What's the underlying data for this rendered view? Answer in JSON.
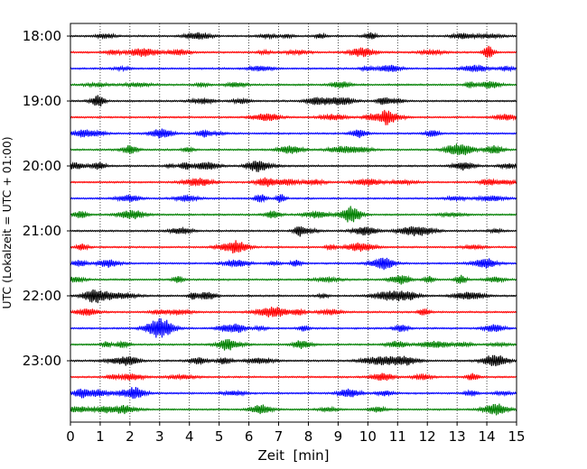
{
  "chart_data": {
    "type": "line",
    "title": "",
    "xlabel": "Zeit  [min]",
    "ylabel": "UTC (Lokalzeit = UTC + 01:00)",
    "xlim": [
      0,
      15
    ],
    "x_ticks": [
      "0",
      "1",
      "2",
      "3",
      "4",
      "5",
      "6",
      "7",
      "8",
      "9",
      "10",
      "11",
      "12",
      "13",
      "14",
      "15"
    ],
    "y_tick_labels": [
      "18:00",
      "19:00",
      "20:00",
      "21:00",
      "22:00",
      "23:00"
    ],
    "grid": "vertical dotted at each minute",
    "trace_colors": [
      "#000000",
      "#ff0000",
      "#0000ff",
      "#008000"
    ],
    "traces": [
      {
        "start": "18:00",
        "color": "#000000"
      },
      {
        "start": "18:15",
        "color": "#ff0000"
      },
      {
        "start": "18:30",
        "color": "#0000ff"
      },
      {
        "start": "18:45",
        "color": "#008000"
      },
      {
        "start": "19:00",
        "color": "#000000"
      },
      {
        "start": "19:15",
        "color": "#ff0000"
      },
      {
        "start": "19:30",
        "color": "#0000ff"
      },
      {
        "start": "19:45",
        "color": "#008000"
      },
      {
        "start": "20:00",
        "color": "#000000"
      },
      {
        "start": "20:15",
        "color": "#ff0000"
      },
      {
        "start": "20:30",
        "color": "#0000ff"
      },
      {
        "start": "20:45",
        "color": "#008000"
      },
      {
        "start": "21:00",
        "color": "#000000"
      },
      {
        "start": "21:15",
        "color": "#ff0000"
      },
      {
        "start": "21:30",
        "color": "#0000ff"
      },
      {
        "start": "21:45",
        "color": "#008000"
      },
      {
        "start": "22:00",
        "color": "#000000"
      },
      {
        "start": "22:15",
        "color": "#ff0000"
      },
      {
        "start": "22:30",
        "color": "#0000ff"
      },
      {
        "start": "22:45",
        "color": "#008000"
      },
      {
        "start": "23:00",
        "color": "#000000"
      },
      {
        "start": "23:15",
        "color": "#ff0000"
      },
      {
        "start": "23:30",
        "color": "#0000ff"
      },
      {
        "start": "23:45",
        "color": "#008000"
      }
    ]
  }
}
